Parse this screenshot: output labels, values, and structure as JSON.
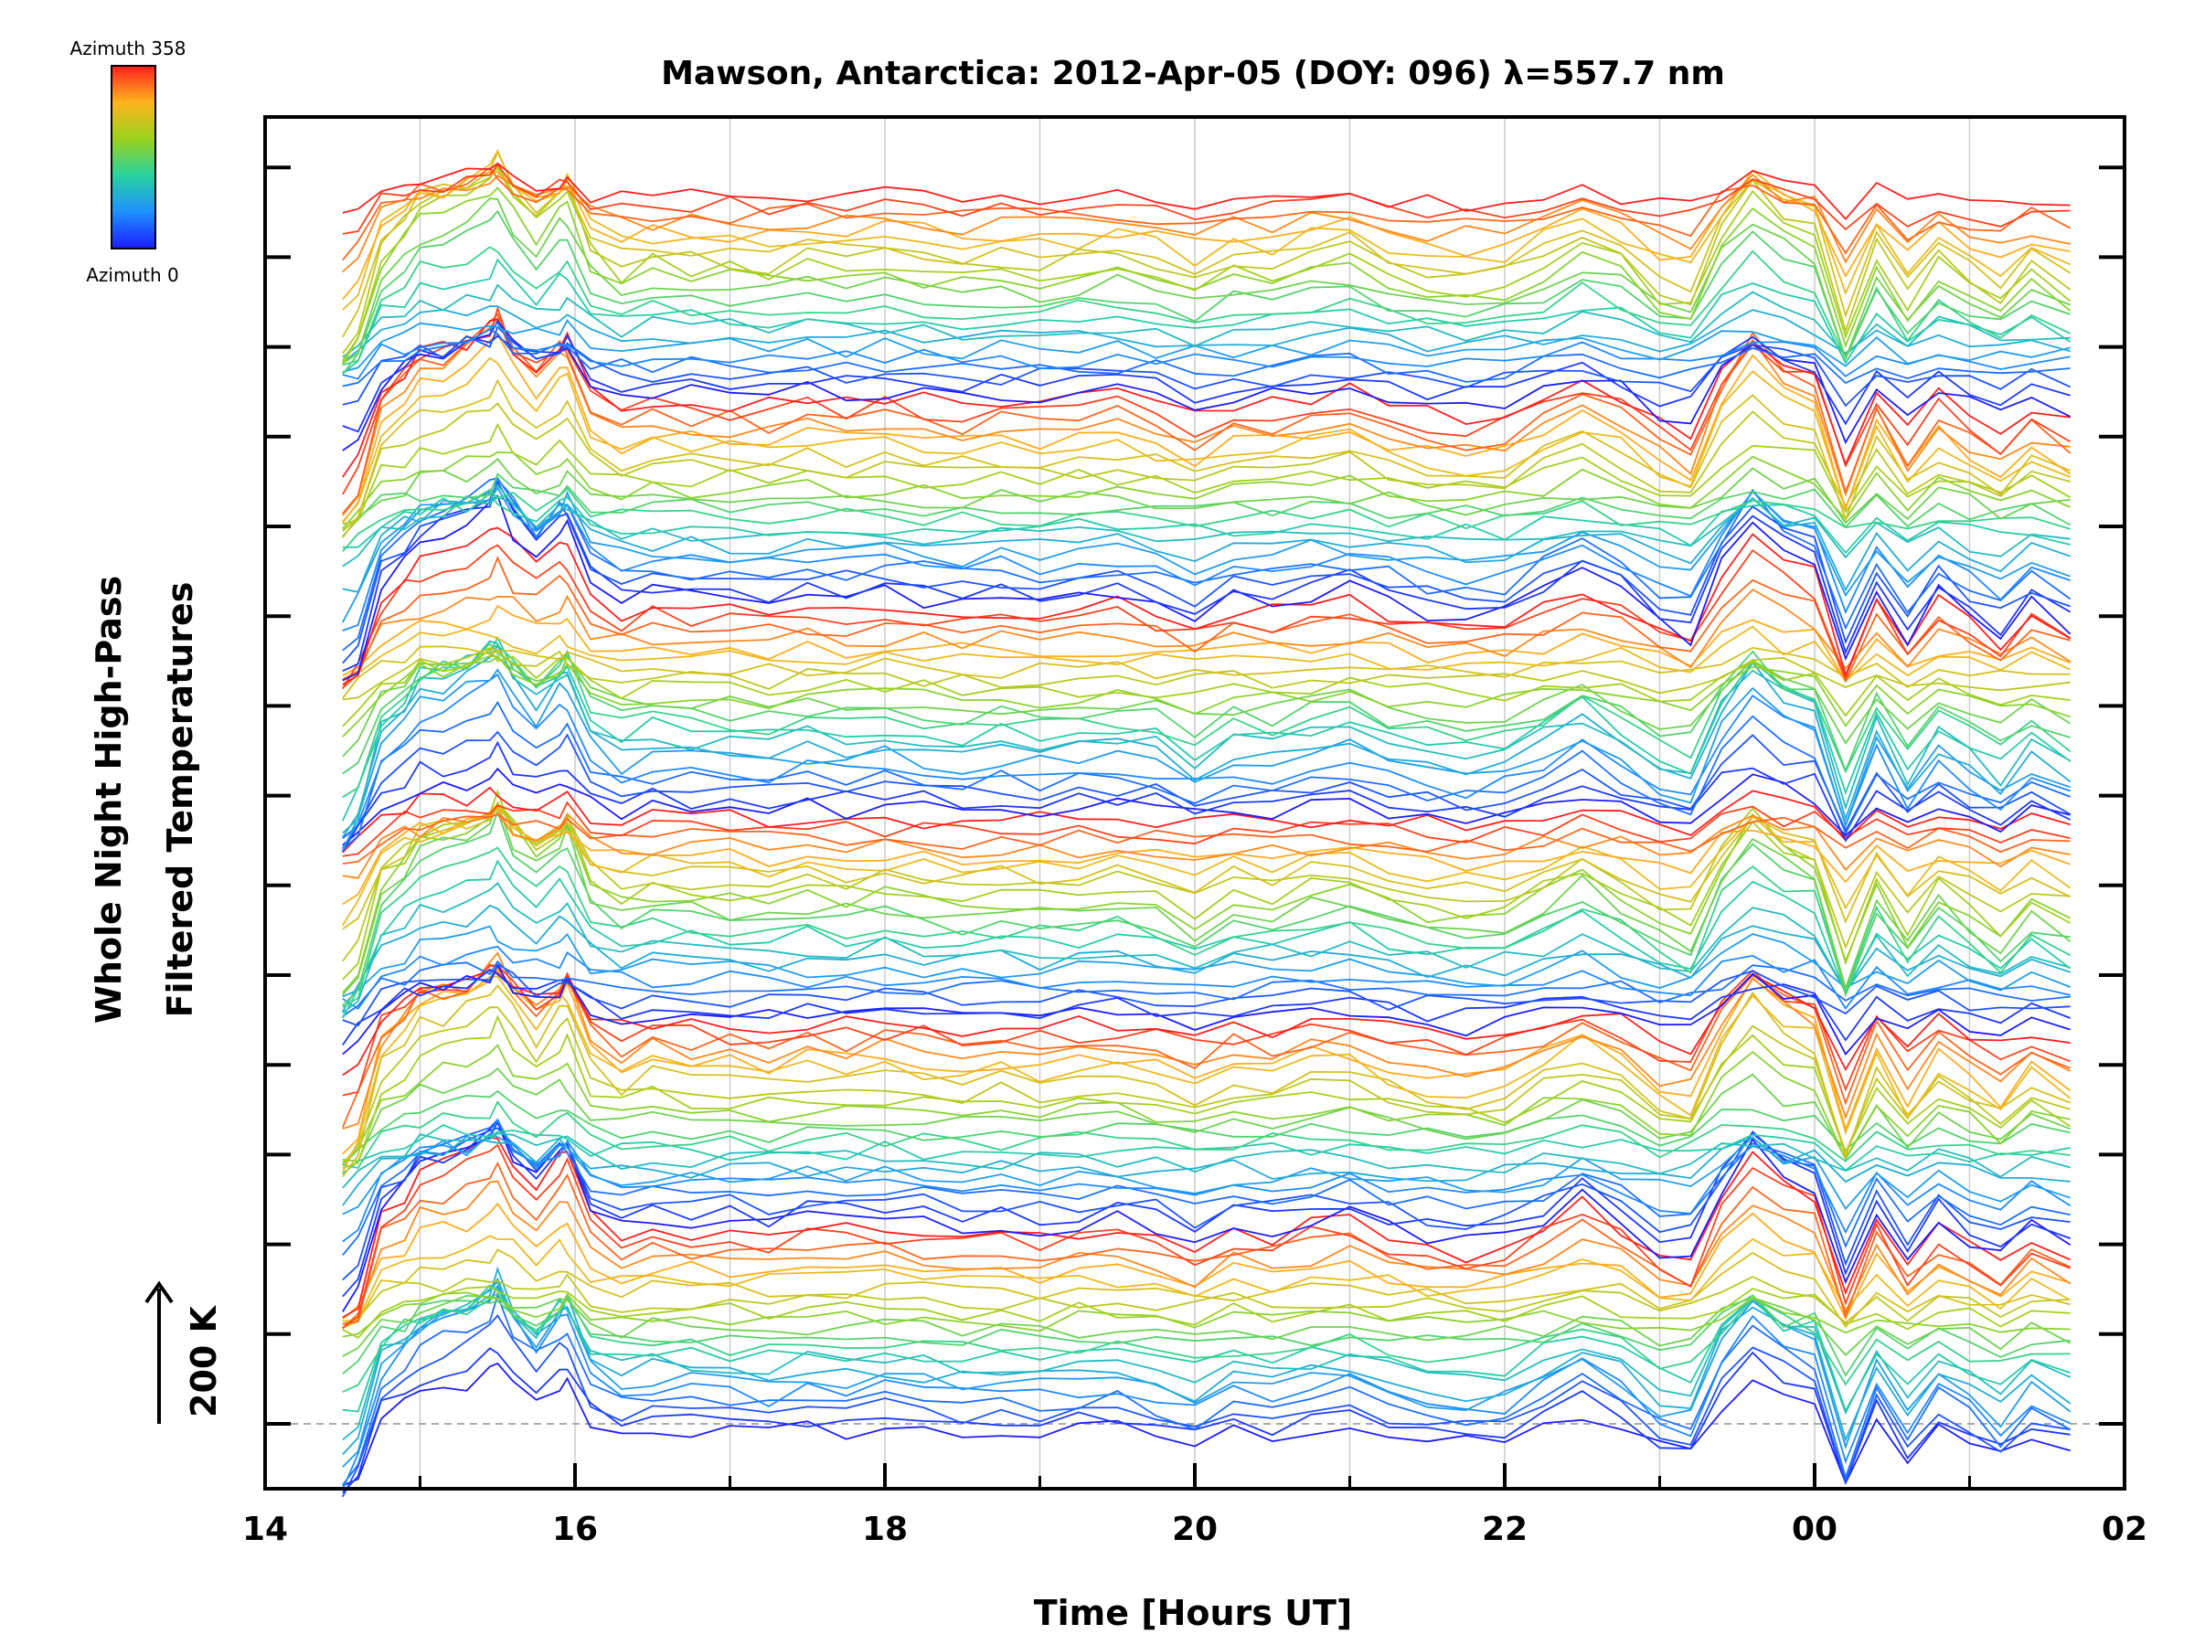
{
  "chart_data": {
    "type": "line",
    "title": "Mawson, Antarctica: 2012-Apr-05 (DOY: 096) λ=557.7 nm",
    "xlabel": "Time [Hours UT]",
    "ylabel": [
      "Whole Night High-Pass",
      "Filtered Temperatures"
    ],
    "x_range_hours": [
      14,
      26
    ],
    "x_ticks": [
      {
        "hour": 14,
        "label": "14"
      },
      {
        "hour": 16,
        "label": "16"
      },
      {
        "hour": 18,
        "label": "18"
      },
      {
        "hour": 20,
        "label": "20"
      },
      {
        "hour": 22,
        "label": "22"
      },
      {
        "hour": 24,
        "label": "00"
      },
      {
        "hour": 26,
        "label": "02"
      }
    ],
    "scale_bar_label": "200 K",
    "colorbar": {
      "top_label": "Azimuth 358",
      "bottom_label": "Azimuth 0",
      "min": 0,
      "max": 358
    },
    "grid": true,
    "series_count": 132,
    "series_note": "stacked high-pass temperature traces, one per azimuth sector, color-coded by azimuth",
    "sample_times": [
      14.5,
      14.6,
      14.75,
      14.9,
      15.0,
      15.15,
      15.3,
      15.45,
      15.5,
      15.6,
      15.75,
      15.9,
      15.95,
      16.1,
      16.3,
      16.5,
      16.75,
      17.0,
      17.25,
      17.5,
      17.75,
      18.0,
      18.25,
      18.5,
      18.75,
      19.0,
      19.25,
      19.5,
      19.75,
      20.0,
      20.25,
      20.5,
      20.75,
      21.0,
      21.25,
      21.5,
      21.75,
      22.0,
      22.25,
      22.5,
      22.75,
      23.0,
      23.2,
      23.4,
      23.6,
      23.8,
      24.0,
      24.2,
      24.4,
      24.6,
      24.8,
      25.0,
      25.2,
      25.4,
      25.65
    ],
    "common_signal_K": [
      -80,
      -60,
      20,
      40,
      60,
      65,
      75,
      90,
      100,
      70,
      45,
      70,
      75,
      20,
      0,
      10,
      5,
      5,
      0,
      10,
      5,
      10,
      5,
      0,
      5,
      0,
      5,
      10,
      0,
      -15,
      5,
      0,
      10,
      15,
      0,
      -10,
      -15,
      -10,
      10,
      30,
      10,
      -20,
      -30,
      40,
      80,
      50,
      40,
      -60,
      20,
      -30,
      10,
      -10,
      -30,
      0,
      -20
    ]
  }
}
